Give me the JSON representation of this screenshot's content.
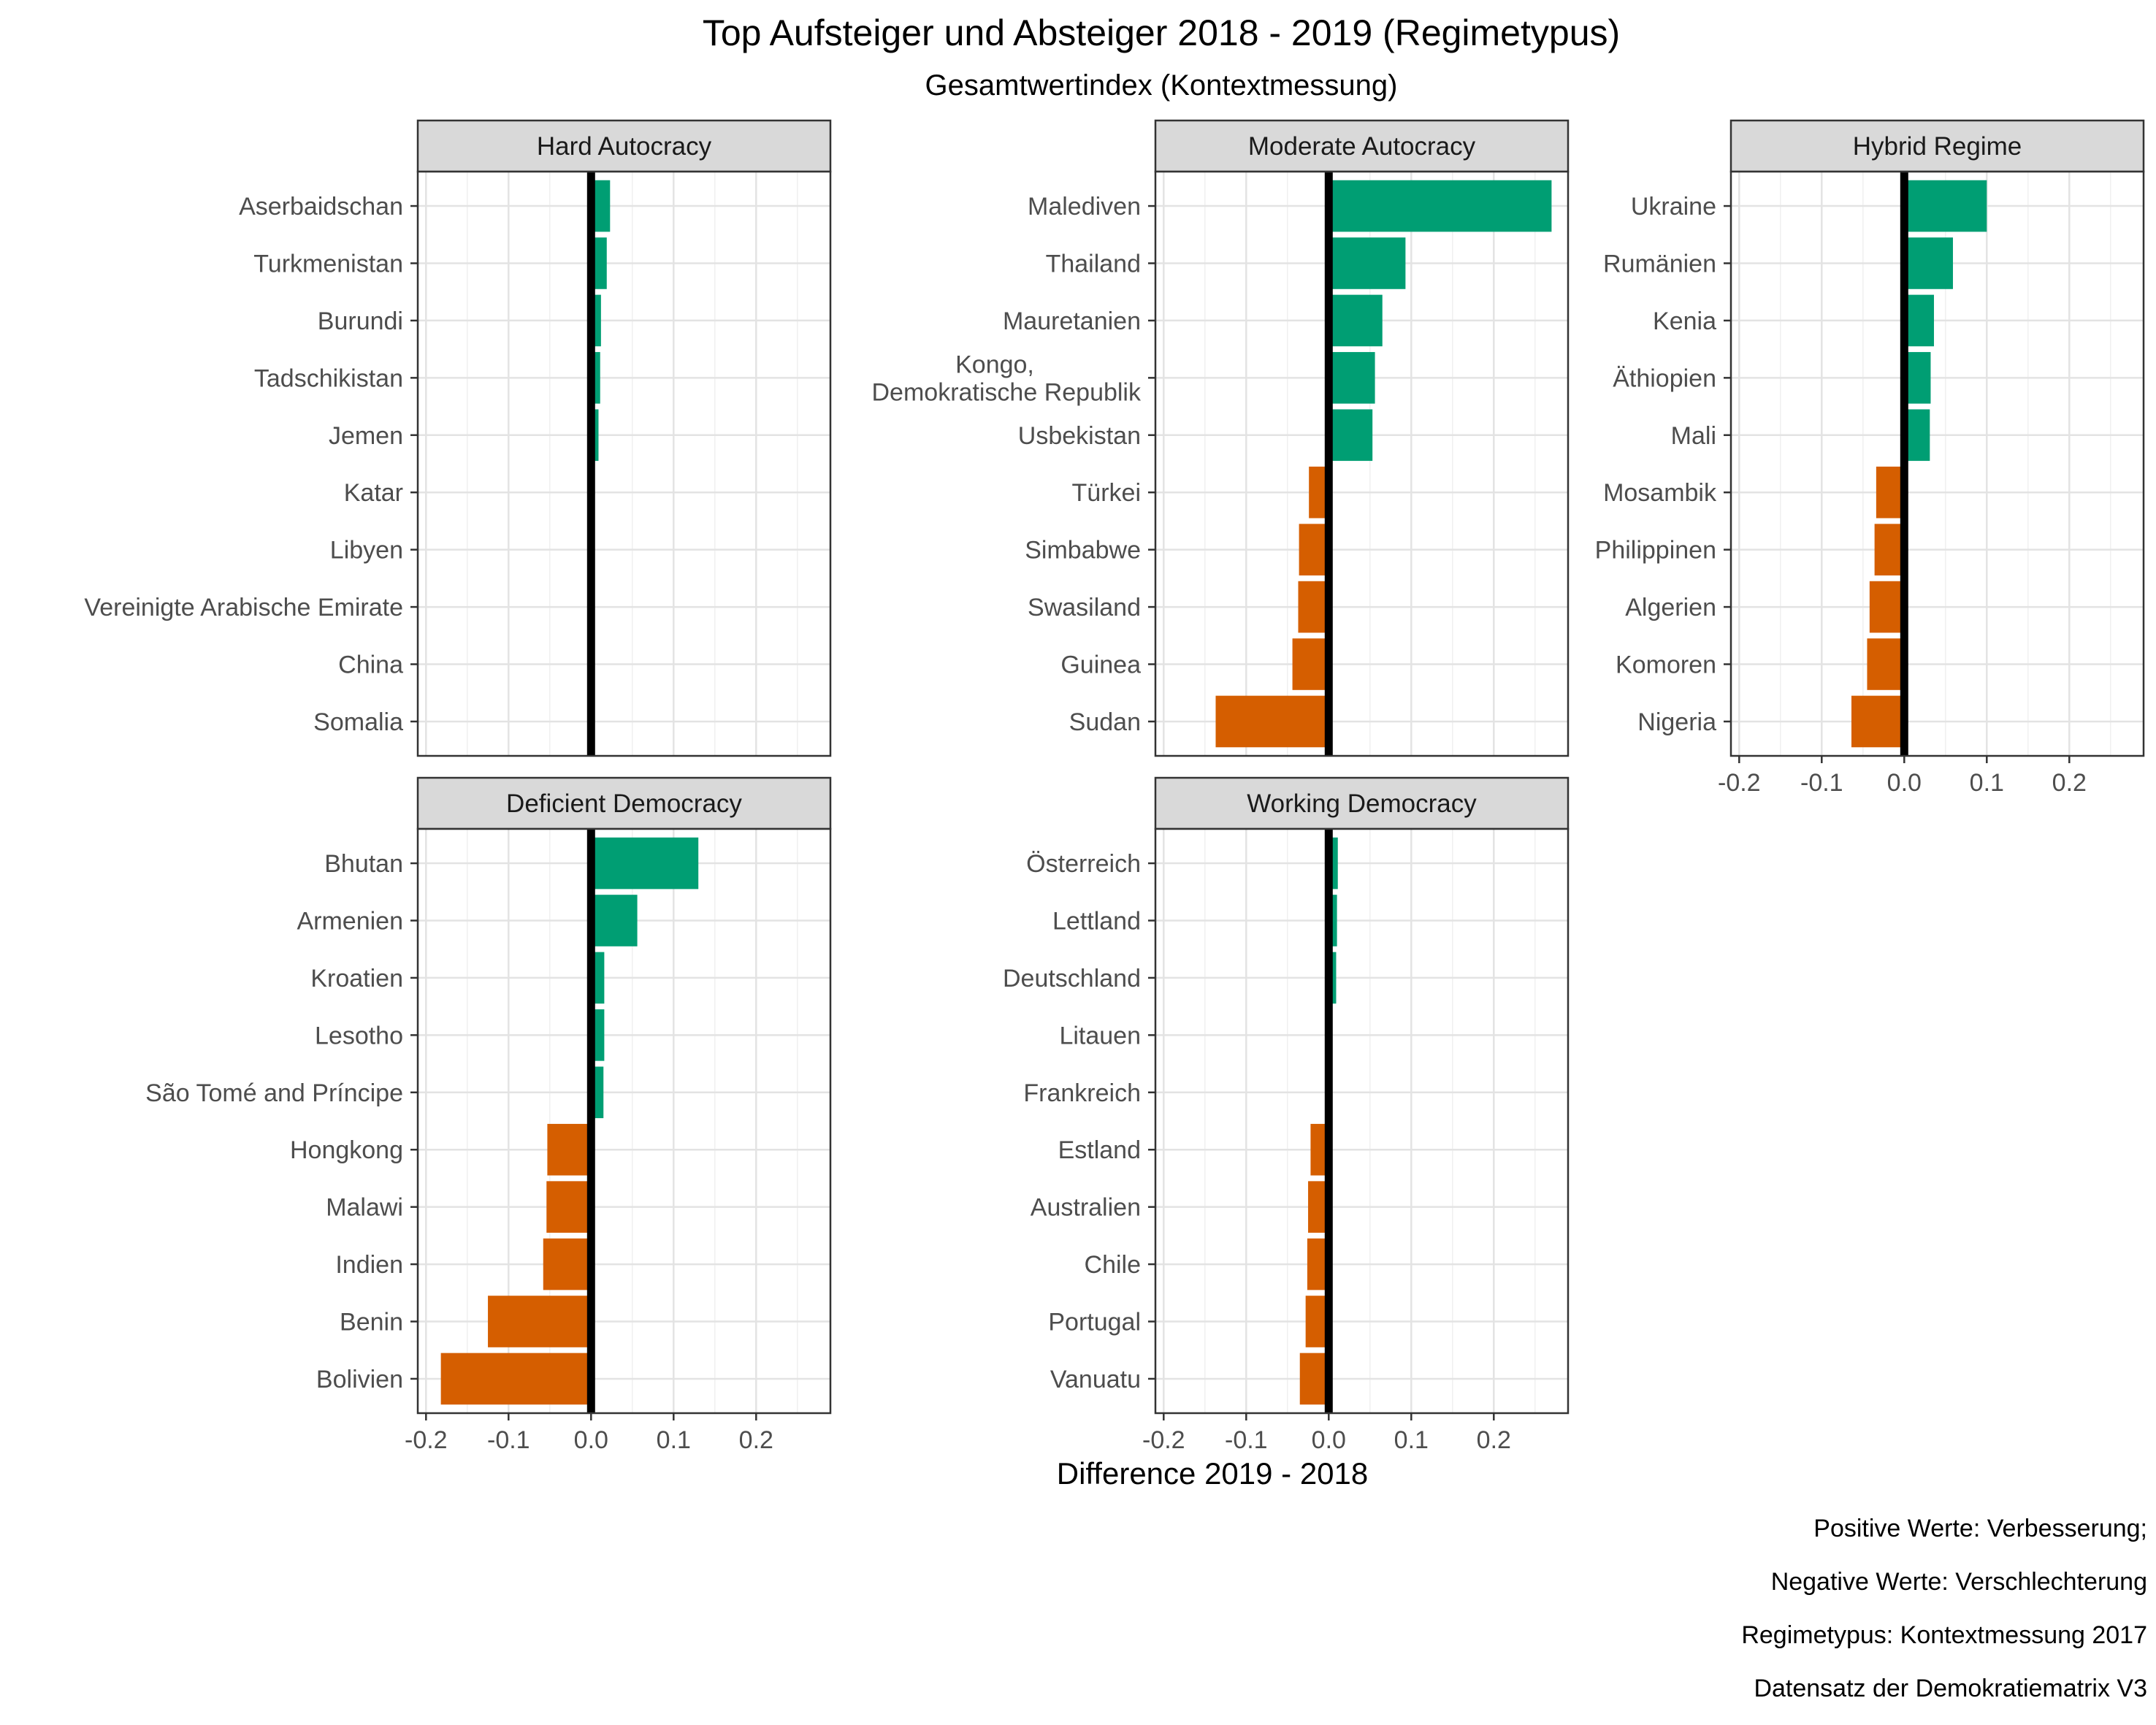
{
  "chart_data": {
    "type": "bar",
    "orientation": "horizontal",
    "title": "Top Aufsteiger und Absteiger 2018 - 2019 (Regimetypus)",
    "subtitle": "Gesamtwertindex (Kontextmessung)",
    "xlabel": "Difference 2019 - 2018",
    "xlim": [
      -0.21,
      0.29
    ],
    "xticks": [
      -0.2,
      -0.1,
      0.0,
      0.1,
      0.2
    ],
    "xtick_labels": [
      "-0.2",
      "-0.1",
      "0.0",
      "0.1",
      "0.2"
    ],
    "colors": {
      "positive": "#009E73",
      "negative": "#D55E00",
      "zero_line": "#000000",
      "strip_fill": "#D9D9D9"
    },
    "caption": [
      "Positive Werte: Verbesserung;",
      "Negative Werte: Verschlechterung",
      "Regimetypus: Kontextmessung 2017",
      "Datensatz der Demokratiematrix V3"
    ],
    "panels": [
      {
        "facet": "Hard Autocracy",
        "categories": [
          "Aserbaidschan",
          "Turkmenistan",
          "Burundi",
          "Tadschikistan",
          "Jemen",
          "Katar",
          "Libyen",
          "Vereinigte Arabische Emirate",
          "China",
          "Somalia"
        ],
        "values": [
          0.023,
          0.019,
          0.012,
          0.011,
          0.009,
          0.0,
          0.0,
          0.0,
          0.0,
          0.0
        ]
      },
      {
        "facet": "Moderate Autocracy",
        "categories": [
          "Malediven",
          "Thailand",
          "Mauretanien",
          "Kongo,\nDemokratische Republik",
          "Usbekistan",
          "Türkei",
          "Simbabwe",
          "Swasiland",
          "Guinea",
          "Sudan"
        ],
        "values": [
          0.27,
          0.093,
          0.065,
          0.056,
          0.053,
          -0.024,
          -0.036,
          -0.037,
          -0.044,
          -0.137
        ]
      },
      {
        "facet": "Hybrid Regime",
        "categories": [
          "Ukraine",
          "Rumänien",
          "Kenia",
          "Äthiopien",
          "Mali",
          "Mosambik",
          "Philippinen",
          "Algerien",
          "Komoren",
          "Nigeria"
        ],
        "values": [
          0.1,
          0.059,
          0.036,
          0.032,
          0.031,
          -0.034,
          -0.036,
          -0.042,
          -0.045,
          -0.064
        ]
      },
      {
        "facet": "Deficient Democracy",
        "categories": [
          "Bhutan",
          "Armenien",
          "Kroatien",
          "Lesotho",
          "São Tomé and Príncipe",
          "Hongkong",
          "Malawi",
          "Indien",
          "Benin",
          "Bolivien"
        ],
        "values": [
          0.13,
          0.056,
          0.016,
          0.016,
          0.015,
          -0.053,
          -0.054,
          -0.058,
          -0.125,
          -0.182
        ]
      },
      {
        "facet": "Working Democracy",
        "categories": [
          "Österreich",
          "Lettland",
          "Deutschland",
          "Litauen",
          "Frankreich",
          "Estland",
          "Australien",
          "Chile",
          "Portugal",
          "Vanuatu"
        ],
        "values": [
          0.011,
          0.01,
          0.009,
          0.0,
          0.0,
          -0.022,
          -0.025,
          -0.026,
          -0.028,
          -0.035
        ]
      }
    ]
  }
}
